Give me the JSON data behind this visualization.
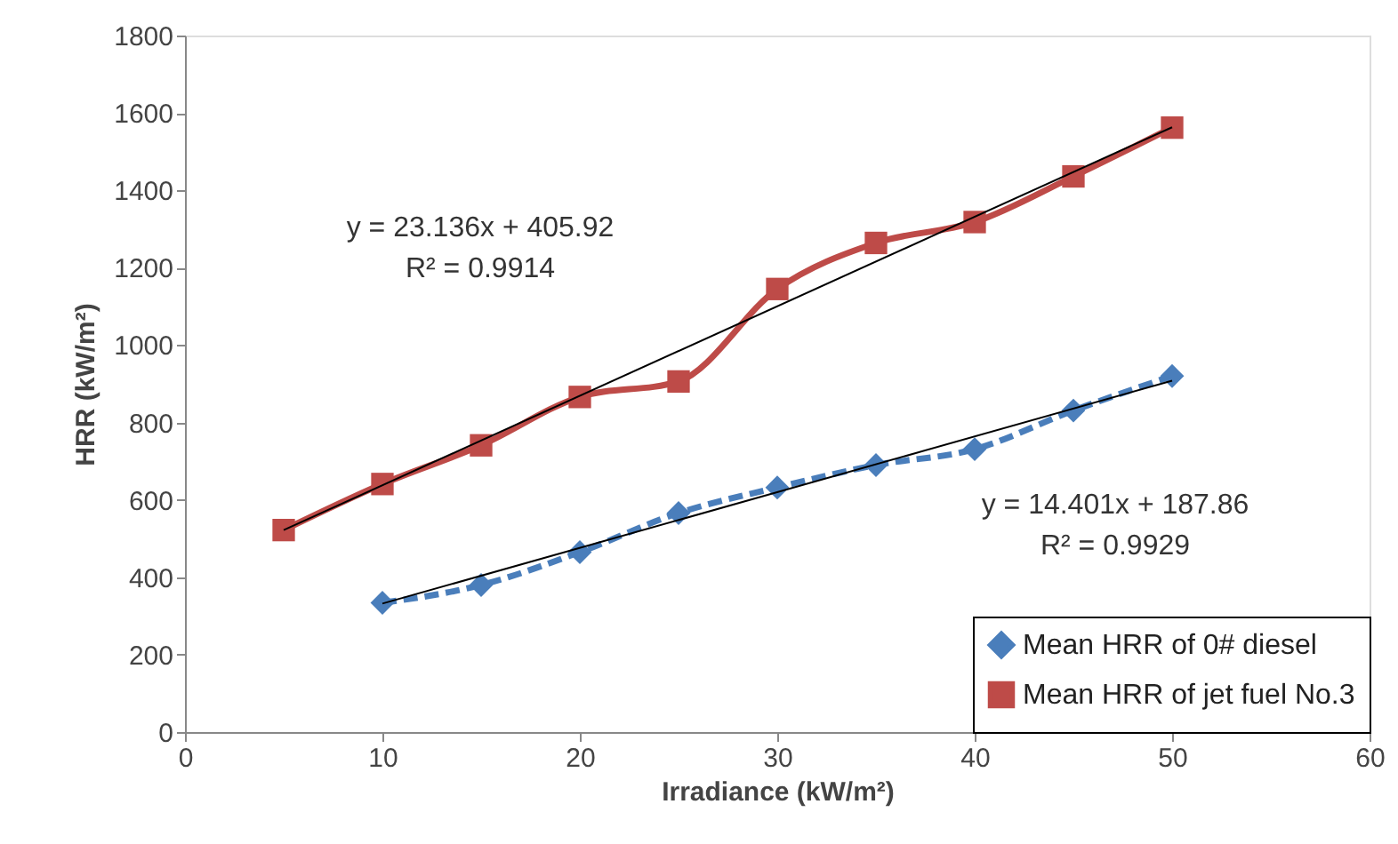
{
  "chart_data": {
    "type": "line",
    "xlabel": "Irradiance (kW/m²)",
    "ylabel": "HRR (kW/m²)",
    "xlim": [
      0,
      60
    ],
    "xticks": [
      0,
      10,
      20,
      30,
      40,
      50,
      60
    ],
    "ylim": [
      0,
      1800
    ],
    "yticks": [
      0,
      200,
      400,
      600,
      800,
      1000,
      1200,
      1400,
      1600,
      1800
    ],
    "grid": false,
    "legend": "bottom right",
    "series": [
      {
        "name": "Mean HRR of 0# diesel",
        "color": "#4a7ebb",
        "marker": "diamond",
        "line_style": "dashed",
        "x": [
          10,
          15,
          20,
          25,
          30,
          35,
          40,
          45,
          50
        ],
        "values": [
          334,
          380,
          465,
          566,
          632,
          690,
          731,
          831,
          920
        ]
      },
      {
        "name": "Mean HRR of jet fuel No.3",
        "color": "#be4b48",
        "marker": "square",
        "line_style": "solid",
        "x": [
          5,
          10,
          15,
          20,
          25,
          30,
          35,
          40,
          45,
          50
        ],
        "values": [
          522,
          641,
          741,
          866,
          906,
          1145,
          1264,
          1318,
          1436,
          1562
        ]
      },
      {
        "type": "line",
        "color": "#000000",
        "marker": "none",
        "line_style": "solid",
        "x": [
          10,
          50
        ],
        "values": [
          332,
          908
        ]
      },
      {
        "type": "line",
        "color": "#000000",
        "marker": "none",
        "line_style": "solid",
        "x": [
          5,
          50
        ],
        "values": [
          522,
          1563
        ]
      }
    ],
    "annotations": [
      "y = 23.136x + 405.92",
      "R² = 0.9914",
      "y = 14.401x + 187.86",
      "R² = 0.9929"
    ]
  }
}
